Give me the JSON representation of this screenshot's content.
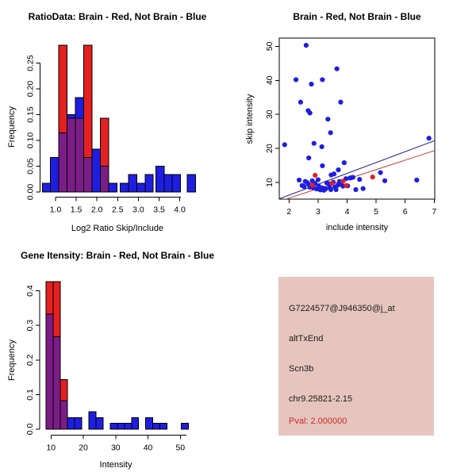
{
  "colors": {
    "blue": "#1e1ee0",
    "red": "#e42020",
    "overlap": "#7b1d87",
    "line_blue": "#22229a",
    "line_red": "#cc4040",
    "info_bg": "#e6c5be",
    "pval_red": "#cc2a2a"
  },
  "chart_data": [
    {
      "type": "bar",
      "variant": "overlaid-histogram",
      "title": "RatioData: Brain - Red, Not Brain - Blue",
      "xlabel": "Log2 Ratio Skip/Include",
      "ylabel": "Frequency",
      "xticks": [
        "1.0",
        "1.5",
        "2.0",
        "2.5",
        "3.0",
        "3.5",
        "4.0"
      ],
      "yticks": [
        "0.00",
        "0.05",
        "0.10",
        "0.15",
        "0.20",
        "0.25"
      ],
      "xlim": [
        0.6,
        4.45
      ],
      "ylim": [
        0,
        0.29
      ],
      "grid": false,
      "legend": {
        "red": "Brain",
        "blue": "Not Brain"
      },
      "bin_width": 0.2,
      "bars": [
        {
          "x": 0.68,
          "blue": 0.017,
          "red": 0
        },
        {
          "x": 0.88,
          "blue": 0.067,
          "red": 0
        },
        {
          "x": 1.08,
          "blue": 0.115,
          "red": 0.285
        },
        {
          "x": 1.28,
          "blue": 0.15,
          "red": 0.143
        },
        {
          "x": 1.48,
          "blue": 0.183,
          "red": 0.143
        },
        {
          "x": 1.68,
          "blue": 0.067,
          "red": 0.285
        },
        {
          "x": 1.88,
          "blue": 0.083,
          "red": 0
        },
        {
          "x": 2.08,
          "blue": 0.05,
          "red": 0.143
        },
        {
          "x": 2.28,
          "blue": 0.017,
          "red": 0
        },
        {
          "x": 2.56,
          "blue": 0.017,
          "red": 0
        },
        {
          "x": 2.76,
          "blue": 0.034,
          "red": 0
        },
        {
          "x": 2.96,
          "blue": 0.017,
          "red": 0
        },
        {
          "x": 3.16,
          "blue": 0.034,
          "red": 0
        },
        {
          "x": 3.42,
          "blue": 0.05,
          "red": 0
        },
        {
          "x": 3.62,
          "blue": 0.034,
          "red": 0
        },
        {
          "x": 3.82,
          "blue": 0.034,
          "red": 0
        },
        {
          "x": 4.18,
          "blue": 0.034,
          "red": 0
        }
      ]
    },
    {
      "type": "scatter",
      "title": "Brain - Red, Not Brain - Blue",
      "xlabel": "include intensity",
      "ylabel": "skip intensity",
      "xticks": [
        "2",
        "3",
        "4",
        "5",
        "6",
        "7"
      ],
      "yticks": [
        "10",
        "20",
        "30",
        "40",
        "50"
      ],
      "xlim": [
        1.66,
        7.02
      ],
      "ylim": [
        5.1,
        52.5
      ],
      "grid": false,
      "legend": {
        "red": "Brain",
        "blue": "Not Brain"
      },
      "blue_points": [
        [
          2.59,
          50.3
        ],
        [
          3.65,
          43.4
        ],
        [
          2.24,
          40.2
        ],
        [
          3.15,
          40.2
        ],
        [
          2.77,
          38.9
        ],
        [
          2.4,
          33.6
        ],
        [
          3.78,
          33.6
        ],
        [
          2.66,
          31.1
        ],
        [
          2.72,
          30.4
        ],
        [
          3.34,
          28.6
        ],
        [
          3.43,
          24.6
        ],
        [
          6.82,
          23.0
        ],
        [
          1.85,
          21.1
        ],
        [
          2.86,
          21.5
        ],
        [
          3.13,
          20.5
        ],
        [
          2.68,
          17.2
        ],
        [
          3.9,
          15.8
        ],
        [
          3.15,
          14.9
        ],
        [
          3.7,
          13.7
        ],
        [
          3.55,
          12.5
        ],
        [
          3.45,
          12.2
        ],
        [
          5.15,
          12.9
        ],
        [
          4.14,
          11.4
        ],
        [
          4.43,
          10.9
        ],
        [
          5.3,
          10.5
        ],
        [
          6.4,
          10.7
        ],
        [
          2.35,
          10.7
        ],
        [
          2.45,
          9.1
        ],
        [
          2.52,
          8.8
        ],
        [
          2.56,
          10.3
        ],
        [
          2.62,
          10.0
        ],
        [
          2.68,
          9.4
        ],
        [
          2.72,
          8.6
        ],
        [
          2.8,
          10.5
        ],
        [
          2.84,
          8.4
        ],
        [
          2.9,
          9.7
        ],
        [
          2.95,
          8.1
        ],
        [
          3.0,
          10.8
        ],
        [
          3.02,
          9.0
        ],
        [
          3.08,
          7.8
        ],
        [
          3.14,
          8.4
        ],
        [
          3.2,
          7.7
        ],
        [
          3.26,
          8.1
        ],
        [
          3.3,
          9.9
        ],
        [
          3.36,
          9.6
        ],
        [
          3.4,
          8.6
        ],
        [
          3.44,
          7.9
        ],
        [
          3.52,
          10.1
        ],
        [
          3.58,
          8.7
        ],
        [
          3.62,
          7.9
        ],
        [
          3.68,
          9.2
        ],
        [
          3.74,
          10.3
        ],
        [
          3.8,
          9.4
        ],
        [
          3.86,
          8.9
        ],
        [
          3.96,
          11.1
        ],
        [
          4.02,
          9.0
        ],
        [
          4.1,
          11.3
        ],
        [
          4.2,
          11.5
        ],
        [
          4.3,
          7.9
        ],
        [
          4.55,
          8.2
        ]
      ],
      "red_points": [
        [
          2.9,
          12.1
        ],
        [
          2.8,
          9.2
        ],
        [
          3.48,
          9.8
        ],
        [
          3.86,
          10.4
        ],
        [
          3.97,
          9.1
        ],
        [
          4.88,
          11.6
        ]
      ],
      "fit_lines": [
        {
          "color_key": "line_blue",
          "x1": 1.66,
          "y1": 5.2,
          "x2": 7.02,
          "y2": 22.3
        },
        {
          "color_key": "line_red",
          "x1": 1.85,
          "y1": 5.0,
          "x2": 7.02,
          "y2": 19.4
        }
      ]
    },
    {
      "type": "bar",
      "variant": "overlaid-histogram",
      "title": "Gene Itensity: Brain - Red, Not Brain - Blue",
      "xlabel": "Intensity",
      "ylabel": "Frequency",
      "xticks": [
        "10",
        "20",
        "30",
        "40",
        "50"
      ],
      "yticks": [
        "0.0",
        "0.1",
        "0.2",
        "0.3",
        "0.4"
      ],
      "xlim": [
        6.5,
        53.5
      ],
      "ylim": [
        0,
        0.44
      ],
      "grid": false,
      "legend": {
        "red": "Brain",
        "blue": "Not Brain"
      },
      "bin_width": 2.2,
      "bars": [
        {
          "x": 8.5,
          "blue": 0.333,
          "red": 0.427
        },
        {
          "x": 10.7,
          "blue": 0.267,
          "red": 0.427
        },
        {
          "x": 12.9,
          "blue": 0.083,
          "red": 0.143
        },
        {
          "x": 15.1,
          "blue": 0.033,
          "red": 0
        },
        {
          "x": 17.3,
          "blue": 0.033,
          "red": 0
        },
        {
          "x": 21.7,
          "blue": 0.05,
          "red": 0
        },
        {
          "x": 23.9,
          "blue": 0.033,
          "red": 0
        },
        {
          "x": 28.3,
          "blue": 0.017,
          "red": 0
        },
        {
          "x": 30.5,
          "blue": 0.017,
          "red": 0
        },
        {
          "x": 32.7,
          "blue": 0.017,
          "red": 0
        },
        {
          "x": 34.9,
          "blue": 0.033,
          "red": 0
        },
        {
          "x": 39.3,
          "blue": 0.033,
          "red": 0
        },
        {
          "x": 41.5,
          "blue": 0.017,
          "red": 0
        },
        {
          "x": 43.7,
          "blue": 0.017,
          "red": 0
        },
        {
          "x": 50.3,
          "blue": 0.017,
          "red": 0
        }
      ]
    }
  ],
  "info_panel": {
    "probe_id": "G7224577@J946350@j_at",
    "event_type": "altTxEnd",
    "gene_symbol": "Scn3b",
    "location": "chr9.25821-2.15",
    "pval": "Pval: 2.000000"
  }
}
